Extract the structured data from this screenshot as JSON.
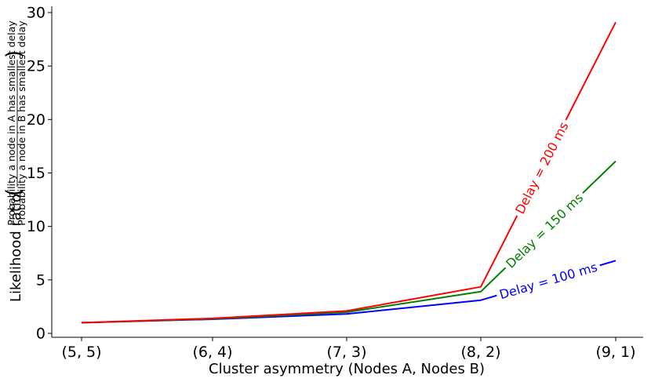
{
  "chart_data": {
    "type": "line",
    "categories": [
      "(5, 5)",
      "(6, 4)",
      "(7, 3)",
      "(8, 2)",
      "(9, 1)"
    ],
    "series": [
      {
        "name": "Delay = 100 ms",
        "color": "#0000ff",
        "values": [
          1.0,
          1.32,
          1.82,
          3.1,
          6.8
        ]
      },
      {
        "name": "Delay = 150 ms",
        "color": "#008000",
        "values": [
          1.0,
          1.36,
          1.98,
          3.9,
          16.1
        ]
      },
      {
        "name": "Delay = 200 ms",
        "color": "#ff0000",
        "values": [
          1.0,
          1.4,
          2.1,
          4.35,
          29.1
        ]
      }
    ],
    "xlabel": "Cluster asymmetry (Nodes A, Nodes B)",
    "ylabel": {
      "prefix": "Likelihood ratio",
      "numerator": "Probability a node in A has smallest delay",
      "denominator": "Probability a node in B has smallest delay"
    },
    "ylim": [
      0,
      30
    ],
    "yticks": [
      "0",
      "5",
      "10",
      "15",
      "20",
      "25",
      "30"
    ],
    "grid": false,
    "legend": "inline labels on lines"
  }
}
